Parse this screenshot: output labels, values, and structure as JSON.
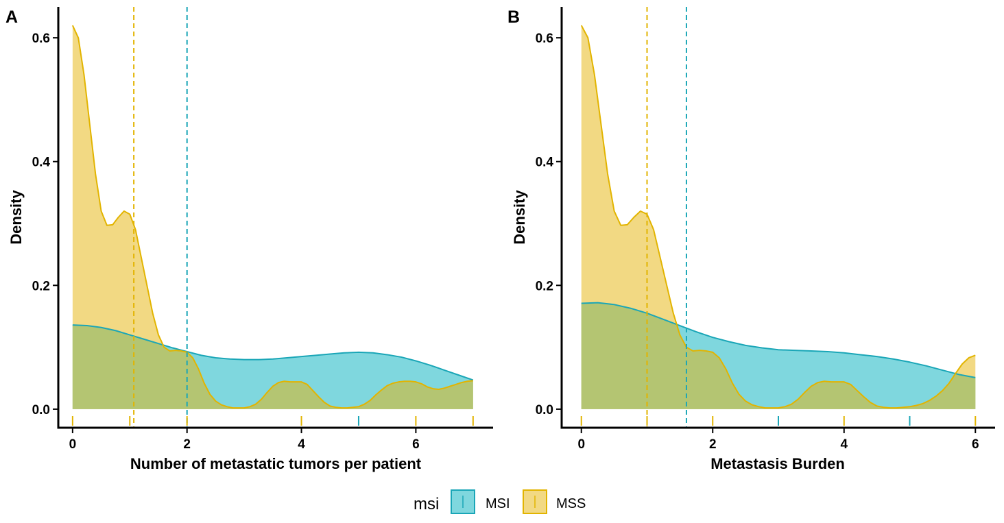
{
  "colors": {
    "msi_fill": "#7fd7de",
    "msi_line": "#1aa6b7",
    "mss_fill": "#f2d983",
    "mss_line": "#e2b400",
    "overlap_fill": "#b4c572",
    "overlap_line": "#6aa85a"
  },
  "legend": {
    "title": "msi",
    "items": [
      {
        "key": "MSI",
        "label": "MSI"
      },
      {
        "key": "MSS",
        "label": "MSS"
      }
    ]
  },
  "chart_data": [
    {
      "type": "area",
      "panel_tag": "A",
      "xlabel": "Number of metastatic tumors per patient",
      "ylabel": "Density",
      "xlim": [
        -0.25,
        7.35
      ],
      "ylim": [
        -0.03,
        0.65
      ],
      "xticks": [
        0,
        2,
        4,
        6
      ],
      "yticks": [
        0.0,
        0.2,
        0.4,
        0.6
      ],
      "ytick_labels": [
        "0.0",
        "0.2",
        "0.4",
        "0.6"
      ],
      "grid": false,
      "legend_position": "bottom",
      "series": [
        {
          "name": "MSI",
          "x": [
            0,
            0.25,
            0.5,
            0.75,
            1,
            1.25,
            1.5,
            1.75,
            2,
            2.25,
            2.5,
            2.75,
            3,
            3.25,
            3.5,
            3.75,
            4,
            4.25,
            4.5,
            4.75,
            5,
            5.25,
            5.5,
            5.75,
            6,
            6.25,
            6.5,
            6.75,
            7
          ],
          "y": [
            0.136,
            0.135,
            0.132,
            0.127,
            0.12,
            0.113,
            0.106,
            0.099,
            0.093,
            0.087,
            0.083,
            0.081,
            0.08,
            0.08,
            0.081,
            0.083,
            0.085,
            0.087,
            0.089,
            0.091,
            0.092,
            0.091,
            0.088,
            0.084,
            0.078,
            0.071,
            0.063,
            0.055,
            0.047
          ],
          "mean": 2.0,
          "rug": [
            5
          ]
        },
        {
          "name": "MSS",
          "x": [
            0,
            0.1,
            0.2,
            0.3,
            0.4,
            0.5,
            0.6,
            0.7,
            0.8,
            0.9,
            1.0,
            1.1,
            1.2,
            1.3,
            1.4,
            1.5,
            1.6,
            1.7,
            1.8,
            1.9,
            2.0,
            2.1,
            2.2,
            2.3,
            2.4,
            2.5,
            2.6,
            2.7,
            2.8,
            2.9,
            3.0,
            3.1,
            3.2,
            3.3,
            3.4,
            3.5,
            3.6,
            3.7,
            3.8,
            3.9,
            4.0,
            4.1,
            4.2,
            4.3,
            4.4,
            4.5,
            4.6,
            4.7,
            4.8,
            4.9,
            5.0,
            5.1,
            5.2,
            5.3,
            5.4,
            5.5,
            5.6,
            5.7,
            5.8,
            5.9,
            6.0,
            6.1,
            6.2,
            6.3,
            6.4,
            6.5,
            6.6,
            6.7,
            6.8,
            6.9,
            7.0
          ],
          "y": [
            0.62,
            0.6,
            0.54,
            0.46,
            0.38,
            0.32,
            0.297,
            0.298,
            0.31,
            0.32,
            0.315,
            0.29,
            0.245,
            0.2,
            0.155,
            0.12,
            0.1,
            0.094,
            0.095,
            0.094,
            0.092,
            0.083,
            0.065,
            0.042,
            0.024,
            0.013,
            0.007,
            0.004,
            0.002,
            0.002,
            0.002,
            0.004,
            0.008,
            0.016,
            0.027,
            0.037,
            0.043,
            0.045,
            0.044,
            0.044,
            0.044,
            0.04,
            0.03,
            0.02,
            0.011,
            0.005,
            0.003,
            0.002,
            0.002,
            0.003,
            0.004,
            0.008,
            0.014,
            0.023,
            0.031,
            0.038,
            0.042,
            0.044,
            0.045,
            0.045,
            0.044,
            0.041,
            0.036,
            0.033,
            0.032,
            0.034,
            0.037,
            0.04,
            0.043,
            0.045,
            0.046
          ],
          "mean": 1.07,
          "rug": [
            0,
            1,
            2,
            4,
            6,
            7
          ]
        }
      ]
    },
    {
      "type": "area",
      "panel_tag": "B",
      "xlabel": "Metastasis Burden",
      "ylabel": "Density",
      "xlim": [
        -0.3,
        6.3
      ],
      "ylim": [
        -0.03,
        0.65
      ],
      "xticks": [
        0,
        2,
        4,
        6
      ],
      "yticks": [
        0.0,
        0.2,
        0.4,
        0.6
      ],
      "ytick_labels": [
        "0.0",
        "0.2",
        "0.4",
        "0.6"
      ],
      "grid": false,
      "legend_position": "bottom",
      "series": [
        {
          "name": "MSI",
          "x": [
            0,
            0.25,
            0.5,
            0.75,
            1,
            1.25,
            1.5,
            1.75,
            2,
            2.25,
            2.5,
            2.75,
            3,
            3.25,
            3.5,
            3.75,
            4,
            4.25,
            4.5,
            4.75,
            5,
            5.25,
            5.5,
            5.75,
            6
          ],
          "y": [
            0.171,
            0.172,
            0.169,
            0.163,
            0.155,
            0.145,
            0.135,
            0.125,
            0.116,
            0.109,
            0.103,
            0.099,
            0.096,
            0.095,
            0.094,
            0.093,
            0.091,
            0.088,
            0.085,
            0.081,
            0.076,
            0.07,
            0.063,
            0.056,
            0.051
          ],
          "mean": 1.6,
          "rug": [
            3,
            5
          ]
        },
        {
          "name": "MSS",
          "x": [
            0,
            0.1,
            0.2,
            0.3,
            0.4,
            0.5,
            0.6,
            0.7,
            0.8,
            0.9,
            1.0,
            1.1,
            1.2,
            1.3,
            1.4,
            1.5,
            1.6,
            1.7,
            1.8,
            1.9,
            2.0,
            2.1,
            2.2,
            2.3,
            2.4,
            2.5,
            2.6,
            2.7,
            2.8,
            2.9,
            3.0,
            3.1,
            3.2,
            3.3,
            3.4,
            3.5,
            3.6,
            3.7,
            3.8,
            3.9,
            4.0,
            4.1,
            4.2,
            4.3,
            4.4,
            4.5,
            4.6,
            4.7,
            4.8,
            4.9,
            5.0,
            5.1,
            5.2,
            5.3,
            5.4,
            5.5,
            5.6,
            5.7,
            5.8,
            5.9,
            6.0
          ],
          "y": [
            0.62,
            0.6,
            0.54,
            0.46,
            0.38,
            0.32,
            0.297,
            0.298,
            0.31,
            0.32,
            0.315,
            0.29,
            0.245,
            0.2,
            0.155,
            0.12,
            0.1,
            0.094,
            0.095,
            0.094,
            0.092,
            0.083,
            0.065,
            0.042,
            0.024,
            0.013,
            0.007,
            0.004,
            0.002,
            0.002,
            0.002,
            0.004,
            0.008,
            0.016,
            0.027,
            0.037,
            0.043,
            0.045,
            0.044,
            0.044,
            0.044,
            0.04,
            0.03,
            0.02,
            0.011,
            0.005,
            0.003,
            0.002,
            0.002,
            0.003,
            0.004,
            0.006,
            0.009,
            0.014,
            0.021,
            0.03,
            0.042,
            0.058,
            0.073,
            0.083,
            0.087
          ],
          "mean": 1.0,
          "rug": [
            0,
            1,
            2,
            4,
            6
          ]
        }
      ]
    }
  ]
}
